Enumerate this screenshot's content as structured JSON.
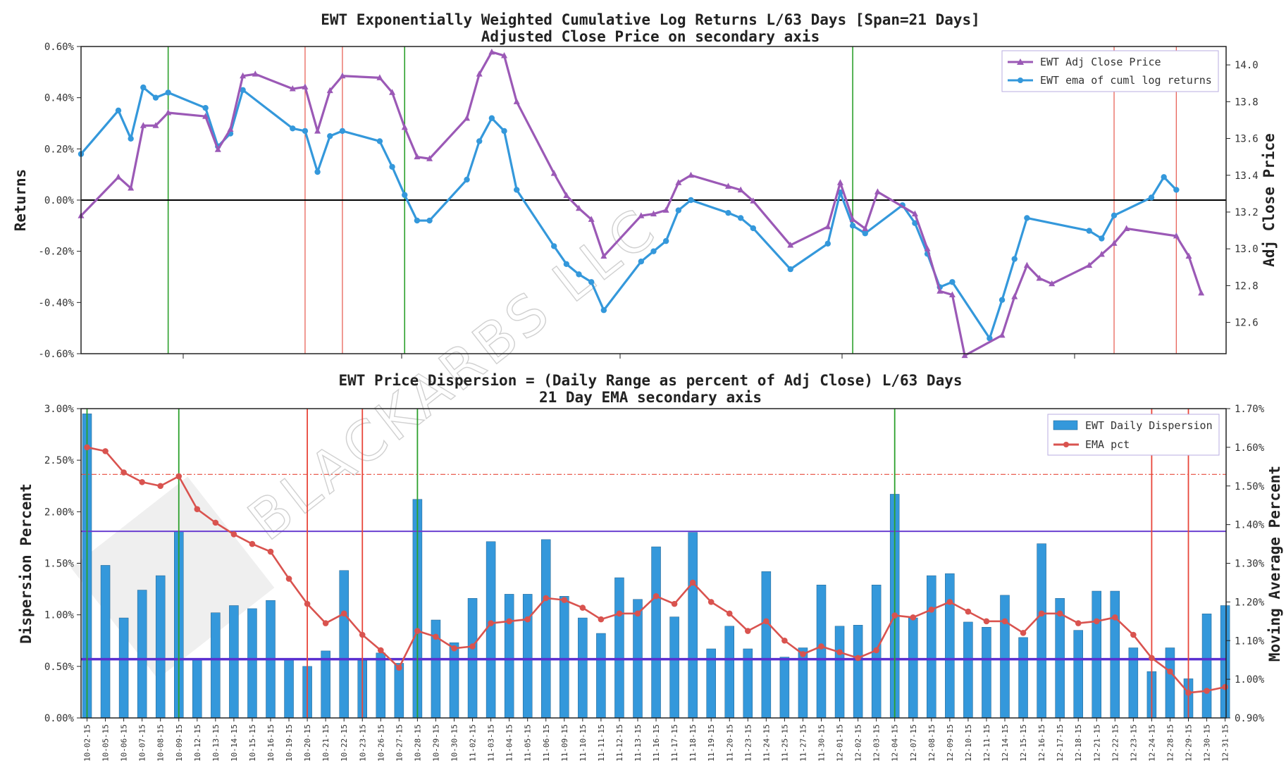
{
  "watermark": {
    "text": "BLACKARBS LLC"
  },
  "chart_data": [
    {
      "type": "line",
      "title": "EWT Exponentially Weighted Cumulative Log Returns L/63 Days [Span=21 Days]",
      "subtitle": "Adjusted Close Price on secondary axis",
      "ylabel": "Returns",
      "y2label": "Adj Close Price",
      "ylim": [
        -0.6,
        0.6
      ],
      "y2lim": [
        12.43,
        14.1
      ],
      "yticks": [
        "-0.60%",
        "-0.40%",
        "-0.20%",
        "0.00%",
        "0.20%",
        "0.40%",
        "0.60%"
      ],
      "y2ticks": [
        "12.6",
        "12.8",
        "13.0",
        "13.2",
        "13.4",
        "13.6",
        "13.8",
        "14.0"
      ],
      "xlim": [
        0,
        92
      ],
      "legend_position": "top-right",
      "green_vlines": [
        7,
        26,
        62
      ],
      "red_vlines": [
        18,
        21,
        83,
        88
      ],
      "series": [
        {
          "name": "EWT ema of cuml log returns",
          "axis": "left",
          "color": "#3498db",
          "marker": "circle",
          "x": [
            0,
            3,
            4,
            5,
            6,
            7,
            10,
            11,
            12,
            13,
            17,
            18,
            19,
            20,
            21,
            24,
            25,
            26,
            27,
            28,
            31,
            32,
            33,
            34,
            35,
            38,
            39,
            40,
            41,
            42,
            45,
            46,
            47,
            48,
            49,
            52,
            53,
            54,
            57,
            60,
            61,
            62,
            63,
            66,
            67,
            68,
            69,
            70,
            73,
            74,
            75,
            76,
            81,
            82,
            83,
            86,
            87,
            88
          ],
          "values": [
            0.18,
            0.35,
            0.24,
            0.44,
            0.4,
            0.42,
            0.36,
            0.21,
            0.26,
            0.43,
            0.28,
            0.27,
            0.11,
            0.25,
            0.27,
            0.23,
            0.13,
            0.02,
            -0.08,
            -0.08,
            0.08,
            0.23,
            0.32,
            0.27,
            0.04,
            -0.18,
            -0.25,
            -0.29,
            -0.32,
            -0.43,
            -0.24,
            -0.2,
            -0.16,
            -0.04,
            0.0,
            -0.05,
            -0.07,
            -0.11,
            -0.27,
            -0.17,
            0.03,
            -0.1,
            -0.13,
            -0.02,
            -0.09,
            -0.21,
            -0.34,
            -0.32,
            -0.54,
            -0.39,
            -0.23,
            -0.07,
            -0.12,
            -0.15,
            -0.06,
            0.01,
            0.09,
            0.04
          ]
        },
        {
          "name": "EWT Adj Close Price",
          "axis": "right",
          "color": "#9b59b6",
          "marker": "triangle",
          "x": [
            0,
            3,
            4,
            5,
            6,
            7,
            10,
            11,
            12,
            13,
            14,
            17,
            18,
            19,
            20,
            21,
            24,
            25,
            26,
            27,
            28,
            31,
            32,
            33,
            34,
            35,
            38,
            39,
            40,
            41,
            42,
            45,
            46,
            47,
            48,
            49,
            52,
            53,
            54,
            57,
            60,
            61,
            62,
            63,
            64,
            67,
            68,
            69,
            70,
            71,
            74,
            75,
            76,
            77,
            78,
            81,
            82,
            83,
            84,
            88,
            89,
            90
          ],
          "values": [
            13.18,
            13.39,
            13.33,
            13.67,
            13.67,
            13.74,
            13.72,
            13.54,
            13.65,
            13.94,
            13.95,
            13.87,
            13.88,
            13.64,
            13.86,
            13.94,
            13.93,
            13.85,
            13.66,
            13.5,
            13.49,
            13.71,
            13.95,
            14.07,
            14.05,
            13.8,
            13.41,
            13.29,
            13.22,
            13.16,
            12.96,
            13.18,
            13.19,
            13.21,
            13.36,
            13.4,
            13.34,
            13.32,
            13.26,
            13.02,
            13.12,
            13.36,
            13.16,
            13.11,
            13.31,
            13.19,
            13.0,
            12.77,
            12.75,
            12.42,
            12.53,
            12.74,
            12.91,
            12.84,
            12.81,
            12.91,
            12.97,
            13.03,
            13.11,
            13.07,
            12.96,
            12.76
          ]
        }
      ]
    },
    {
      "type": "bar",
      "title": "EWT Price Dispersion = (Daily Range as percent of Adj Close) L/63 Days",
      "subtitle": "21 Day EMA secondary axis",
      "ylabel": "Dispersion Percent",
      "y2label": "Moving Average Percent",
      "ylim": [
        0,
        3.0
      ],
      "y2lim": [
        0.9,
        1.7
      ],
      "yticks": [
        "0.00%",
        "0.50%",
        "1.00%",
        "1.50%",
        "2.00%",
        "2.50%",
        "3.00%"
      ],
      "y2ticks": [
        "0.90%",
        "1.00%",
        "1.10%",
        "1.20%",
        "1.30%",
        "1.40%",
        "1.50%",
        "1.60%",
        "1.70%"
      ],
      "legend_position": "top-right",
      "categories": [
        "10-02-15",
        "10-05-15",
        "10-06-15",
        "10-07-15",
        "10-08-15",
        "10-09-15",
        "10-12-15",
        "10-13-15",
        "10-14-15",
        "10-15-15",
        "10-16-15",
        "10-19-15",
        "10-20-15",
        "10-21-15",
        "10-22-15",
        "10-23-15",
        "10-26-15",
        "10-27-15",
        "10-28-15",
        "10-29-15",
        "10-30-15",
        "11-02-15",
        "11-03-15",
        "11-04-15",
        "11-05-15",
        "11-06-15",
        "11-09-15",
        "11-10-15",
        "11-11-15",
        "11-12-15",
        "11-13-15",
        "11-16-15",
        "11-17-15",
        "11-18-15",
        "11-19-15",
        "11-20-15",
        "11-23-15",
        "11-24-15",
        "11-25-15",
        "11-27-15",
        "11-30-15",
        "12-01-15",
        "12-02-15",
        "12-03-15",
        "12-04-15",
        "12-07-15",
        "12-08-15",
        "12-09-15",
        "12-10-15",
        "12-11-15",
        "12-14-15",
        "12-15-15",
        "12-16-15",
        "12-17-15",
        "12-18-15",
        "12-21-15",
        "12-22-15",
        "12-23-15",
        "12-24-15",
        "12-28-15",
        "12-29-15",
        "12-30-15",
        "12-31-15"
      ],
      "green_vlines": [
        0,
        5,
        18,
        44
      ],
      "red_vlines": [
        12,
        15,
        58,
        60
      ],
      "hlines_left": [
        {
          "value": 1.81,
          "color": "#6a3fd1",
          "style": "solid"
        },
        {
          "value": 0.57,
          "color": "#5a2fd0",
          "style": "solid-thick"
        }
      ],
      "hlines_right": [
        {
          "value": 1.53,
          "color": "#e74c3c",
          "style": "dashdot"
        }
      ],
      "series": [
        {
          "name": "EWT Daily Dispersion",
          "axis": "left",
          "color": "#3498db",
          "values": [
            2.95,
            1.48,
            0.97,
            1.24,
            1.38,
            1.81,
            0.57,
            1.02,
            1.09,
            1.06,
            1.14,
            0.57,
            0.5,
            0.65,
            1.43,
            0.56,
            0.63,
            0.53,
            2.12,
            0.95,
            0.73,
            1.16,
            1.71,
            1.2,
            1.2,
            1.73,
            1.18,
            0.97,
            0.82,
            1.36,
            1.15,
            1.66,
            0.98,
            1.8,
            0.67,
            0.89,
            0.67,
            1.42,
            0.59,
            0.68,
            1.29,
            0.89,
            0.9,
            1.29,
            2.17,
            0.97,
            1.38,
            1.4,
            0.93,
            0.88,
            1.19,
            0.78,
            1.69,
            1.16,
            0.85,
            1.23,
            1.23,
            0.68,
            0.45,
            0.68,
            0.38,
            1.01,
            1.09
          ]
        },
        {
          "name": "EMA pct",
          "axis": "right",
          "color": "#d9534f",
          "values": [
            1.6,
            1.59,
            1.535,
            1.51,
            1.5,
            1.525,
            1.44,
            1.405,
            1.375,
            1.35,
            1.33,
            1.26,
            1.195,
            1.145,
            1.17,
            1.115,
            1.075,
            1.03,
            1.125,
            1.11,
            1.08,
            1.085,
            1.145,
            1.15,
            1.155,
            1.21,
            1.205,
            1.185,
            1.155,
            1.17,
            1.17,
            1.215,
            1.195,
            1.25,
            1.2,
            1.17,
            1.125,
            1.15,
            1.1,
            1.065,
            1.085,
            1.07,
            1.055,
            1.075,
            1.165,
            1.16,
            1.18,
            1.2,
            1.175,
            1.15,
            1.15,
            1.12,
            1.17,
            1.17,
            1.145,
            1.15,
            1.16,
            1.115,
            1.055,
            1.02,
            0.965,
            0.97,
            0.98
          ]
        }
      ]
    }
  ]
}
